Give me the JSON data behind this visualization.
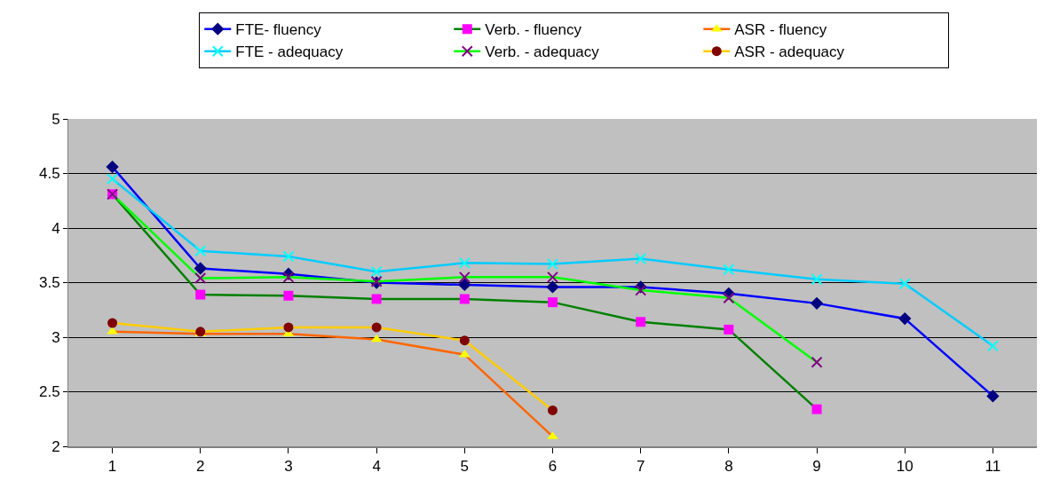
{
  "chart_data": {
    "type": "line",
    "categories": [
      "1",
      "2",
      "3",
      "4",
      "5",
      "6",
      "7",
      "8",
      "9",
      "10",
      "11"
    ],
    "ylim": [
      2,
      5
    ],
    "yticks": [
      2,
      2.5,
      3,
      3.5,
      4,
      4.5,
      5
    ],
    "grid": "y",
    "legend": "top",
    "series": [
      {
        "name": "FTE- fluency",
        "color": "#0000ff",
        "colors": [
          "#000080",
          "#000080",
          "#000080",
          "#000080",
          "#000080",
          "#000080",
          "#000080",
          "#000080",
          "#000080",
          "#000080",
          "#000080"
        ],
        "marker": "diamond",
        "values": [
          4.56,
          3.63,
          3.58,
          3.5,
          3.48,
          3.46,
          3.46,
          3.4,
          3.31,
          3.17,
          2.46
        ]
      },
      {
        "name": "Verb. - fluency",
        "color": "#008000",
        "colors": [
          "#ff00ff",
          "#ff00ff",
          "#ff00ff",
          "#ff00ff",
          "#ff00ff",
          "#ff00ff",
          "#ff00ff",
          "#ff00ff",
          "#ff00ff",
          "#ff00ff",
          "#ff00ff"
        ],
        "marker": "square",
        "values": [
          4.31,
          3.39,
          3.38,
          3.35,
          3.35,
          3.32,
          3.14,
          3.07,
          2.34,
          null,
          null
        ]
      },
      {
        "name": "ASR - fluency",
        "color": "#ff6600",
        "colors": [
          "#ffff00",
          "#ffff00",
          "#ffff00",
          "#ffff00",
          "#ffff00",
          "#ffff00",
          "#ffff00",
          "#ffff00",
          "#ffff00",
          "#ffff00",
          "#ffff00"
        ],
        "marker": "triangle",
        "values": [
          3.05,
          3.03,
          3.03,
          2.98,
          2.84,
          2.09,
          null,
          null,
          null,
          null,
          null
        ]
      },
      {
        "name": "FTE - adequacy",
        "color": "#00ccff",
        "colors": [
          "#00ffff",
          "#00ffff",
          "#00ffff",
          "#00ffff",
          "#00ffff",
          "#00ffff",
          "#00ffff",
          "#00ffff",
          "#00ffff",
          "#00ffff",
          "#00ffff"
        ],
        "marker": "cross",
        "values": [
          4.45,
          3.79,
          3.74,
          3.6,
          3.68,
          3.67,
          3.72,
          3.62,
          3.53,
          3.49,
          2.92
        ]
      },
      {
        "name": "Verb. - adequacy",
        "color": "#00ff00",
        "colors": [
          "#800080",
          "#800080",
          "#800080",
          "#800080",
          "#800080",
          "#800080",
          "#800080",
          "#800080",
          "#800080",
          "#800080",
          "#800080"
        ],
        "marker": "cross",
        "values": [
          4.31,
          3.54,
          3.55,
          3.51,
          3.55,
          3.55,
          3.43,
          3.36,
          2.77,
          null,
          null
        ]
      },
      {
        "name": "ASR - adequacy",
        "color": "#ffcc00",
        "colors": [
          "#800000",
          "#800000",
          "#800000",
          "#800000",
          "#800000",
          "#800000",
          "#800000",
          "#800000",
          "#800000",
          "#800000",
          "#800000"
        ],
        "marker": "circle",
        "values": [
          3.13,
          3.05,
          3.09,
          3.09,
          2.97,
          2.33,
          null,
          null,
          null,
          null,
          null
        ]
      }
    ]
  }
}
